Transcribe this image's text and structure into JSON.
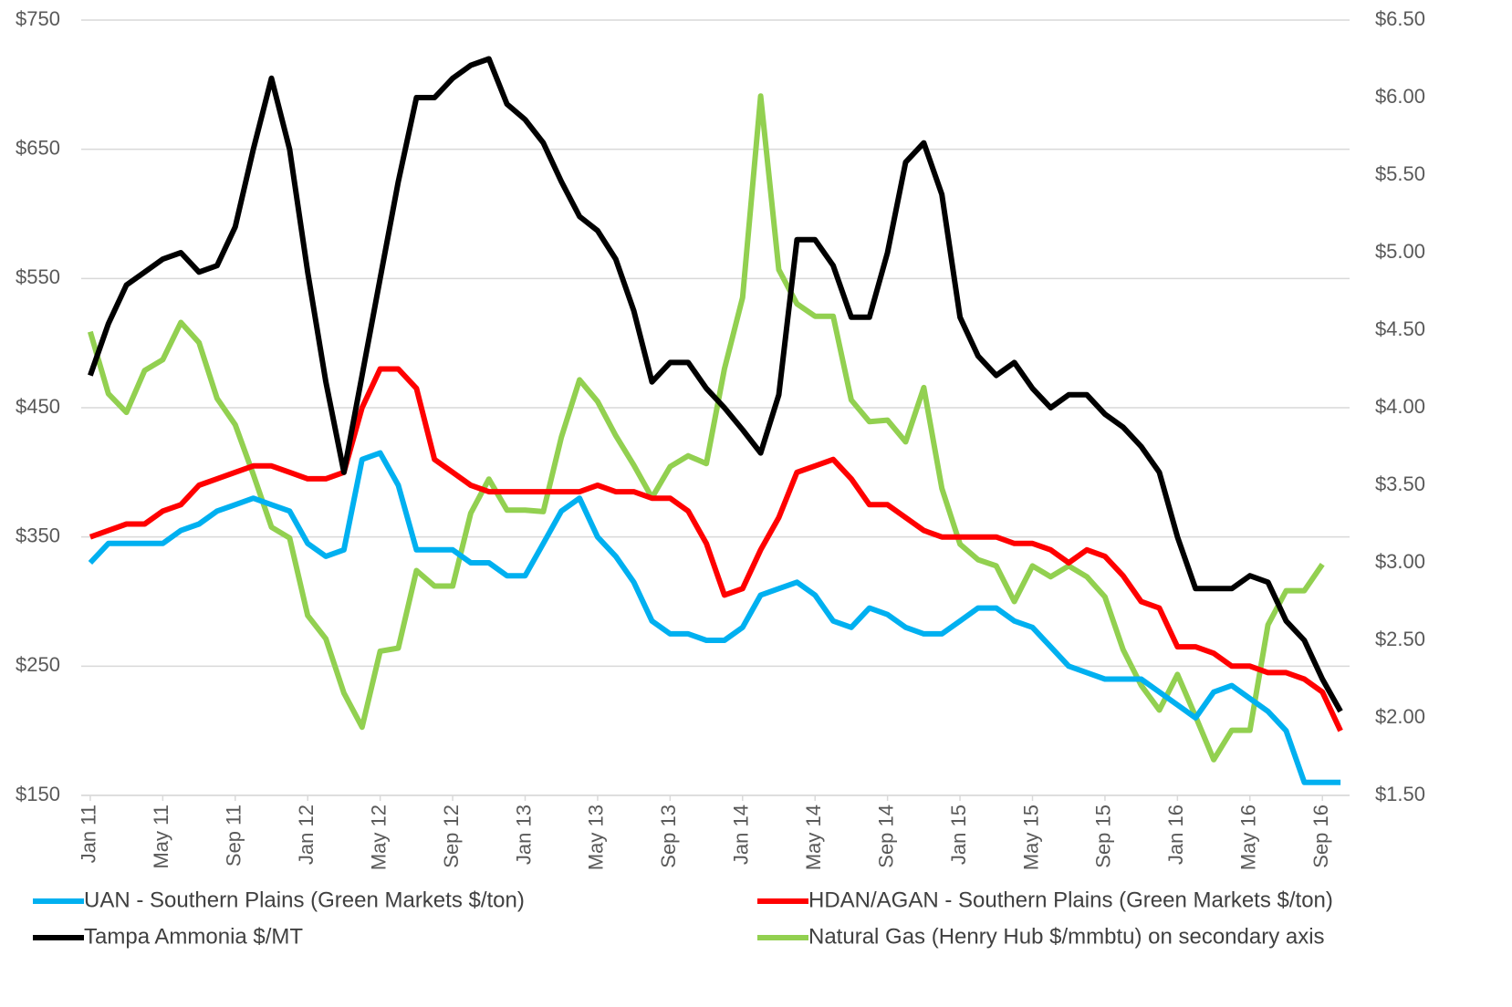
{
  "chart_data": {
    "type": "line",
    "categories": [
      "Jan 11",
      null,
      null,
      null,
      "May 11",
      null,
      null,
      null,
      "Sep 11",
      null,
      null,
      null,
      "Jan 12",
      null,
      null,
      null,
      "May 12",
      null,
      null,
      null,
      "Sep 12",
      null,
      null,
      null,
      "Jan 13",
      null,
      null,
      null,
      "May 13",
      null,
      null,
      null,
      "Sep 13",
      null,
      null,
      null,
      "Jan 14",
      null,
      null,
      null,
      "May 14",
      null,
      null,
      null,
      "Sep 14",
      null,
      null,
      null,
      "Jan 15",
      null,
      null,
      null,
      "May 15",
      null,
      null,
      null,
      "Sep 15",
      null,
      null,
      null,
      "Jan 16",
      null,
      null,
      null,
      "May 16",
      null,
      null,
      null,
      "Sep 16",
      null
    ],
    "ylim": [
      150,
      750
    ],
    "yticks": [
      {
        "value": 150,
        "label": "$150"
      },
      {
        "value": 250,
        "label": "$250"
      },
      {
        "value": 350,
        "label": "$350"
      },
      {
        "value": 450,
        "label": "$450"
      },
      {
        "value": 550,
        "label": "$550"
      },
      {
        "value": 650,
        "label": "$650"
      },
      {
        "value": 750,
        "label": "$750"
      }
    ],
    "y2lim": [
      1.5,
      6.5
    ],
    "y2ticks": [
      {
        "value": 1.5,
        "label": "$1.50"
      },
      {
        "value": 2,
        "label": "$2.00"
      },
      {
        "value": 2.5,
        "label": "$2.50"
      },
      {
        "value": 3,
        "label": "$3.00"
      },
      {
        "value": 3.5,
        "label": "$3.50"
      },
      {
        "value": 4,
        "label": "$4.00"
      },
      {
        "value": 4.5,
        "label": "$4.50"
      },
      {
        "value": 5,
        "label": "$5.00"
      },
      {
        "value": 5.5,
        "label": "$5.50"
      },
      {
        "value": 6,
        "label": "$6.00"
      },
      {
        "value": 6.5,
        "label": "$6.50"
      }
    ],
    "grid": true,
    "series": [
      {
        "name": "UAN - Southern Plains (Green Markets $/ton)",
        "color": "#00b0f0",
        "values": [
          330,
          345,
          345,
          345,
          345,
          355,
          360,
          370,
          375,
          380,
          375,
          370,
          345,
          335,
          340,
          410,
          415,
          390,
          340,
          340,
          340,
          330,
          330,
          320,
          320,
          345,
          370,
          380,
          350,
          335,
          315,
          285,
          275,
          275,
          270,
          270,
          280,
          305,
          310,
          315,
          305,
          285,
          280,
          295,
          290,
          280,
          275,
          275,
          285,
          295,
          295,
          285,
          280,
          265,
          250,
          245,
          240,
          240,
          240,
          230,
          220,
          210,
          230,
          235,
          225,
          215,
          200,
          160,
          160,
          160
        ]
      },
      {
        "name": "HDAN/AGAN - Southern Plains (Green Markets $/ton)",
        "color": "#ff0000",
        "values": [
          350,
          355,
          360,
          360,
          370,
          375,
          390,
          395,
          400,
          405,
          405,
          400,
          395,
          395,
          400,
          450,
          480,
          480,
          465,
          410,
          400,
          390,
          385,
          385,
          385,
          385,
          385,
          385,
          390,
          385,
          385,
          380,
          380,
          370,
          345,
          305,
          310,
          340,
          365,
          400,
          405,
          410,
          395,
          375,
          375,
          365,
          355,
          350,
          350,
          350,
          350,
          345,
          345,
          340,
          330,
          340,
          335,
          320,
          300,
          295,
          265,
          265,
          260,
          250,
          250,
          245,
          245,
          240,
          230,
          200
        ]
      },
      {
        "name": "Tampa Ammonia $/MT",
        "color": "#000000",
        "values": [
          475,
          515,
          545,
          555,
          565,
          570,
          555,
          560,
          590,
          650,
          705,
          650,
          555,
          470,
          400,
          475,
          550,
          625,
          690,
          690,
          705,
          715,
          720,
          685,
          673,
          655,
          625,
          598,
          587,
          565,
          525,
          470,
          485,
          485,
          465,
          450,
          433,
          415,
          460,
          580,
          580,
          560,
          520,
          520,
          570,
          640,
          655,
          615,
          520,
          490,
          475,
          485,
          465,
          450,
          460,
          460,
          445,
          435,
          420,
          400,
          350,
          310,
          310,
          310,
          320,
          315,
          285,
          270,
          240,
          215
        ]
      },
      {
        "name": "Natural Gas (Henry Hub $/mmbtu) on secondary axis",
        "color": "#92d050",
        "axis": "y2",
        "values": [
          4.49,
          4.09,
          3.97,
          4.24,
          4.31,
          4.55,
          4.42,
          4.06,
          3.89,
          3.57,
          3.23,
          3.16,
          2.66,
          2.51,
          2.16,
          1.94,
          2.43,
          2.45,
          2.95,
          2.85,
          2.85,
          3.32,
          3.54,
          3.34,
          3.34,
          3.33,
          3.81,
          4.18,
          4.04,
          3.82,
          3.63,
          3.42,
          3.62,
          3.69,
          3.64,
          4.25,
          4.71,
          6.01,
          4.89,
          4.67,
          4.59,
          4.59,
          4.05,
          3.91,
          3.92,
          3.78,
          4.13,
          3.48,
          3.12,
          3.02,
          2.98,
          2.75,
          2.98,
          2.91,
          2.98,
          2.91,
          2.78,
          2.44,
          2.21,
          2.05,
          2.28,
          2.01,
          1.73,
          1.92,
          1.92,
          2.6,
          2.82,
          2.82,
          2.99,
          null
        ]
      }
    ]
  }
}
